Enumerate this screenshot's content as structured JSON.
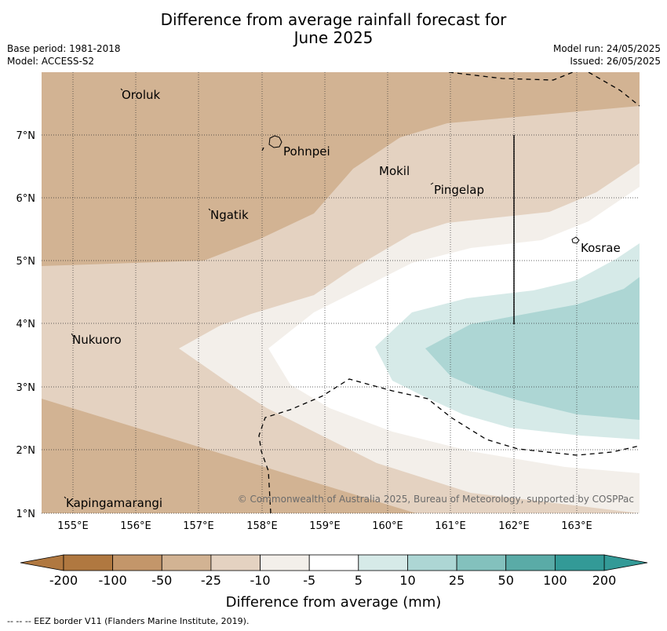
{
  "header": {
    "title_line1": "Difference from average rainfall forecast for",
    "title_line2": "June 2025",
    "base_period": "Base period: 1981-2018",
    "model": "Model: ACCESS-S2",
    "model_run": "Model run: 24/05/2025",
    "issued": "Issued: 26/05/2025"
  },
  "map": {
    "lon_ticks": [
      "155°E",
      "156°E",
      "157°E",
      "158°E",
      "159°E",
      "160°E",
      "161°E",
      "162°E",
      "163°E"
    ],
    "lat_ticks": [
      "1°N",
      "2°N",
      "3°N",
      "4°N",
      "5°N",
      "6°N",
      "7°N"
    ],
    "places": [
      {
        "name": "Oroluk"
      },
      {
        "name": "Pohnpei"
      },
      {
        "name": "Mokil"
      },
      {
        "name": "Pingelap"
      },
      {
        "name": "Ngatik"
      },
      {
        "name": "Kosrae"
      },
      {
        "name": "Nukuoro"
      },
      {
        "name": "Kapingamarangi"
      }
    ],
    "copyright": "© Commonwealth of Australia 2025, Bureau of Meteorology, supported by COSPPac"
  },
  "colorbar": {
    "labels": [
      "-200",
      "-100",
      "-50",
      "-25",
      "-10",
      "-5",
      "5",
      "10",
      "25",
      "50",
      "100",
      "200"
    ],
    "colors": [
      "#b07840",
      "#c3966a",
      "#d2b393",
      "#e4d2c1",
      "#f3efea",
      "#ffffff",
      "#d6eae8",
      "#add6d4",
      "#83c1bd",
      "#5aaba7",
      "#339a97"
    ],
    "title": "Difference from average (mm)"
  },
  "footer": {
    "legend": "--  --  -- EEZ border V11 (Flanders Marine Institute, 2019)."
  }
}
